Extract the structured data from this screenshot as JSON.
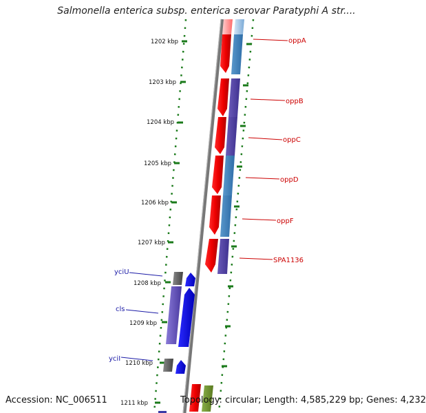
{
  "title": "Salmonella enterica subsp. enterica serovar Paratyphi A str....",
  "footer": {
    "accession": "Accession: NC_006511",
    "summary": "Topology: circular; Length: 4,585,229 bp; Genes: 4,232"
  },
  "ruler": {
    "ticks": [
      "1202 kbp",
      "1203 kbp",
      "1204 kbp",
      "1205 kbp",
      "1206 kbp",
      "1207 kbp",
      "1208 kbp",
      "1209 kbp",
      "1210 kbp",
      "1211 kbp"
    ]
  },
  "genes": {
    "forward": [
      "oppA",
      "oppB",
      "oppC",
      "oppD",
      "oppF",
      "SPA1136"
    ],
    "reverse": [
      "yciU",
      "cls",
      "yciI"
    ]
  },
  "colors": {
    "forward_label": "#cc0000",
    "reverse_label": "#1a1aa6",
    "forward_cds": "#ee0000",
    "forward_gene": "#3a7fb8",
    "reverse_cds": "#0000ee",
    "reverse_gene": "#5a4aa8",
    "dotted_track": "#1a7a1a",
    "backbone": "#777777"
  }
}
